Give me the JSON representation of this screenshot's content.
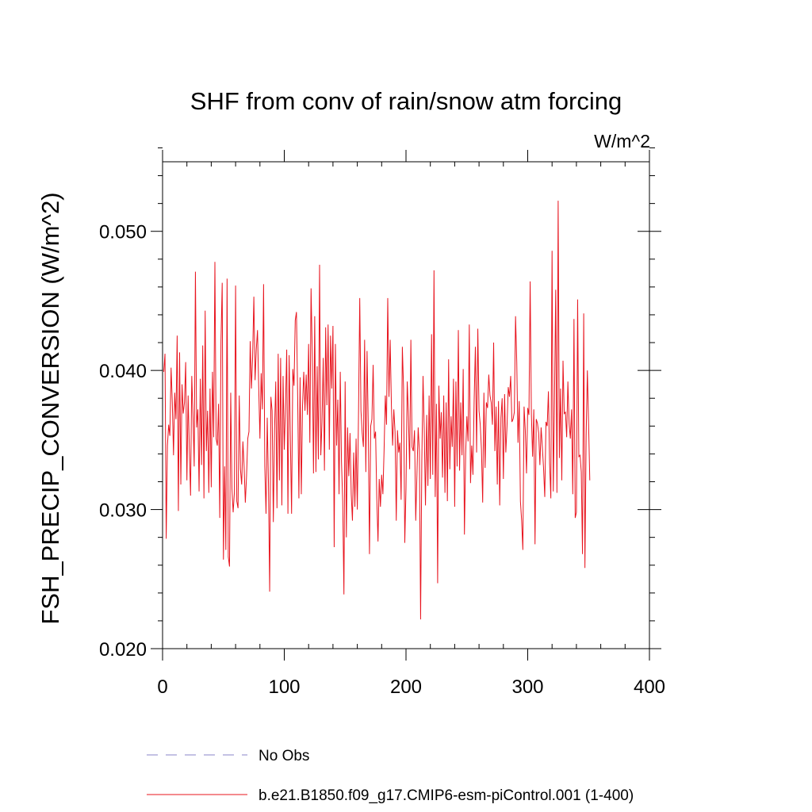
{
  "chart_data": {
    "type": "line",
    "title": "SHF from conv of rain/snow atm forcing",
    "units_label": "W/m^2",
    "xlabel": "",
    "ylabel": "FSH_PRECIP_CONVERSION  (W/m^2)",
    "xlim": [
      0,
      400
    ],
    "ylim": [
      0.02,
      0.055
    ],
    "x_ticks": [
      0,
      100,
      200,
      300,
      400
    ],
    "x_tick_labels": [
      "0",
      "100",
      "200",
      "300",
      "400"
    ],
    "y_ticks": [
      0.02,
      0.03,
      0.04,
      0.05
    ],
    "y_tick_labels": [
      "0.020",
      "0.030",
      "0.040",
      "0.050"
    ],
    "grid": false,
    "legend_position": "bottom",
    "legend": [
      {
        "label": "No Obs",
        "color": "#8a86c8",
        "style": "dashed"
      },
      {
        "label": "b.e21.B1850.f09_g17.CMIP6-esm-piControl.001 (1-400)",
        "color": "#e8141e",
        "style": "solid"
      }
    ],
    "series": [
      {
        "name": "b.e21.B1850.f09_g17.CMIP6-esm-piControl.001 (1-400)",
        "color": "#e8141e",
        "x_start": 1,
        "x_step": 1,
        "values": [
          0.0399,
          0.0412,
          0.0279,
          0.0346,
          0.0361,
          0.0353,
          0.0402,
          0.0377,
          0.0339,
          0.0384,
          0.0365,
          0.0425,
          0.0299,
          0.0413,
          0.0318,
          0.039,
          0.0369,
          0.0377,
          0.0406,
          0.0321,
          0.0382,
          0.0343,
          0.031,
          0.0396,
          0.0367,
          0.0331,
          0.0471,
          0.0359,
          0.0372,
          0.0313,
          0.0394,
          0.0332,
          0.0418,
          0.0308,
          0.0443,
          0.0342,
          0.0371,
          0.0312,
          0.0387,
          0.0316,
          0.0399,
          0.0352,
          0.0478,
          0.0351,
          0.0346,
          0.0376,
          0.0294,
          0.0421,
          0.0463,
          0.0264,
          0.0331,
          0.0271,
          0.0466,
          0.0266,
          0.0259,
          0.0384,
          0.0315,
          0.0298,
          0.0312,
          0.0461,
          0.0306,
          0.0301,
          0.0382,
          0.0329,
          0.0318,
          0.0349,
          0.0331,
          0.0305,
          0.0324,
          0.0351,
          0.0356,
          0.0421,
          0.0387,
          0.041,
          0.0453,
          0.0393,
          0.0415,
          0.0429,
          0.0388,
          0.0351,
          0.0398,
          0.0372,
          0.0462,
          0.0331,
          0.0297,
          0.0366,
          0.0319,
          0.0241,
          0.0381,
          0.0371,
          0.0291,
          0.0357,
          0.0392,
          0.0301,
          0.0412,
          0.0321,
          0.0409,
          0.0303,
          0.0396,
          0.0343,
          0.0374,
          0.0415,
          0.0297,
          0.0411,
          0.0351,
          0.0297,
          0.0401,
          0.0389,
          0.0436,
          0.0442,
          0.0381,
          0.0308,
          0.0395,
          0.0311,
          0.0375,
          0.0399,
          0.0371,
          0.0397,
          0.0368,
          0.0419,
          0.0348,
          0.0459,
          0.0412,
          0.0326,
          0.0439,
          0.0327,
          0.0403,
          0.0336,
          0.0476,
          0.0339,
          0.0363,
          0.0409,
          0.0328,
          0.0431,
          0.0375,
          0.0433,
          0.0343,
          0.0425,
          0.0387,
          0.0432,
          0.0273,
          0.0419,
          0.0346,
          0.0379,
          0.0311,
          0.0399,
          0.0334,
          0.0306,
          0.0239,
          0.0392,
          0.028,
          0.0359,
          0.0324,
          0.0355,
          0.0311,
          0.0292,
          0.0341,
          0.0302,
          0.0351,
          0.03,
          0.0369,
          0.0452,
          0.0371,
          0.0355,
          0.0345,
          0.0422,
          0.0327,
          0.0414,
          0.036,
          0.0268,
          0.036,
          0.0365,
          0.0404,
          0.0351,
          0.0356,
          0.0308,
          0.0277,
          0.0322,
          0.0302,
          0.0325,
          0.0311,
          0.0343,
          0.0382,
          0.0361,
          0.0452,
          0.0381,
          0.0422,
          0.0375,
          0.0346,
          0.0372,
          0.0356,
          0.0292,
          0.0357,
          0.0341,
          0.0348,
          0.0307,
          0.0417,
          0.0387,
          0.0276,
          0.0315,
          0.0392,
          0.0367,
          0.0329,
          0.0422,
          0.0345,
          0.0342,
          0.0357,
          0.0292,
          0.0326,
          0.0359,
          0.0342,
          0.0221,
          0.0335,
          0.0396,
          0.0357,
          0.0303,
          0.0368,
          0.0317,
          0.0382,
          0.0322,
          0.0426,
          0.0325,
          0.0472,
          0.0309,
          0.0376,
          0.0247,
          0.0389,
          0.0351,
          0.037,
          0.0323,
          0.0382,
          0.0312,
          0.0377,
          0.0306,
          0.0408,
          0.0329,
          0.0367,
          0.0345,
          0.0394,
          0.0302,
          0.0392,
          0.0331,
          0.0429,
          0.0328,
          0.0377,
          0.0339,
          0.0401,
          0.0282,
          0.034,
          0.0367,
          0.0349,
          0.0433,
          0.0319,
          0.0346,
          0.0325,
          0.0379,
          0.0417,
          0.0341,
          0.043,
          0.0371,
          0.0361,
          0.0343,
          0.0305,
          0.0384,
          0.033,
          0.0377,
          0.0373,
          0.0397,
          0.0382,
          0.0377,
          0.0361,
          0.042,
          0.0342,
          0.0374,
          0.0318,
          0.0378,
          0.0303,
          0.0366,
          0.038,
          0.0322,
          0.0383,
          0.0341,
          0.036,
          0.0388,
          0.0381,
          0.0396,
          0.0363,
          0.0365,
          0.037,
          0.0439,
          0.0406,
          0.0348,
          0.0378,
          0.0306,
          0.0292,
          0.0271,
          0.0374,
          0.0357,
          0.0326,
          0.0373,
          0.0368,
          0.0464,
          0.0369,
          0.0338,
          0.0372,
          0.0275,
          0.0365,
          0.0362,
          0.0355,
          0.0332,
          0.0359,
          0.0345,
          0.033,
          0.0309,
          0.0363,
          0.036,
          0.0385,
          0.0333,
          0.0308,
          0.0486,
          0.0313,
          0.0379,
          0.0458,
          0.0312,
          0.0522,
          0.0337,
          0.0387,
          0.0321,
          0.0407,
          0.0369,
          0.037,
          0.0352,
          0.0392,
          0.0362,
          0.0351,
          0.0372,
          0.0311,
          0.0437,
          0.0294,
          0.0298,
          0.0451,
          0.0338,
          0.0339,
          0.0327,
          0.0268,
          0.0441,
          0.0258,
          0.0353,
          0.04,
          0.0362,
          0.0321
        ]
      }
    ]
  }
}
